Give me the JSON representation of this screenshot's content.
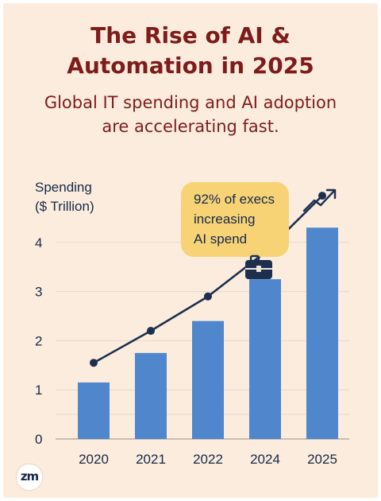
{
  "header": {
    "title_line1": "The Rise of AI &",
    "title_line2": "Automation in 2025",
    "subtitle_line1": "Global IT spending and AI adoption",
    "subtitle_line2": "are accelerating fast."
  },
  "callout": {
    "line1": "92% of execs",
    "line2": "increasing",
    "line3": "AI spend",
    "icon": "briefcase-icon"
  },
  "trend_icon": "trending-up-icon",
  "logo": {
    "text": "zm"
  },
  "colors": {
    "background": "#fbecdd",
    "title": "#7e1c1c",
    "bar": "#4f86cc",
    "line": "#1d2f4f",
    "callout": "#f7d376"
  },
  "chart_data": {
    "type": "bar",
    "categories": [
      "2020",
      "2021",
      "2022",
      "2024",
      "2025"
    ],
    "series": [
      {
        "type": "bar",
        "values": [
          1.15,
          1.75,
          2.4,
          3.25,
          4.3
        ]
      },
      {
        "type": "line",
        "values": [
          1.55,
          2.2,
          2.9,
          3.8,
          4.95
        ]
      }
    ],
    "ylabel_line1": "Spending",
    "ylabel_line2": "($ Trillion)",
    "yticks": [
      0,
      1,
      2,
      3,
      4
    ],
    "ylim": [
      0,
      5
    ],
    "grid": true
  }
}
